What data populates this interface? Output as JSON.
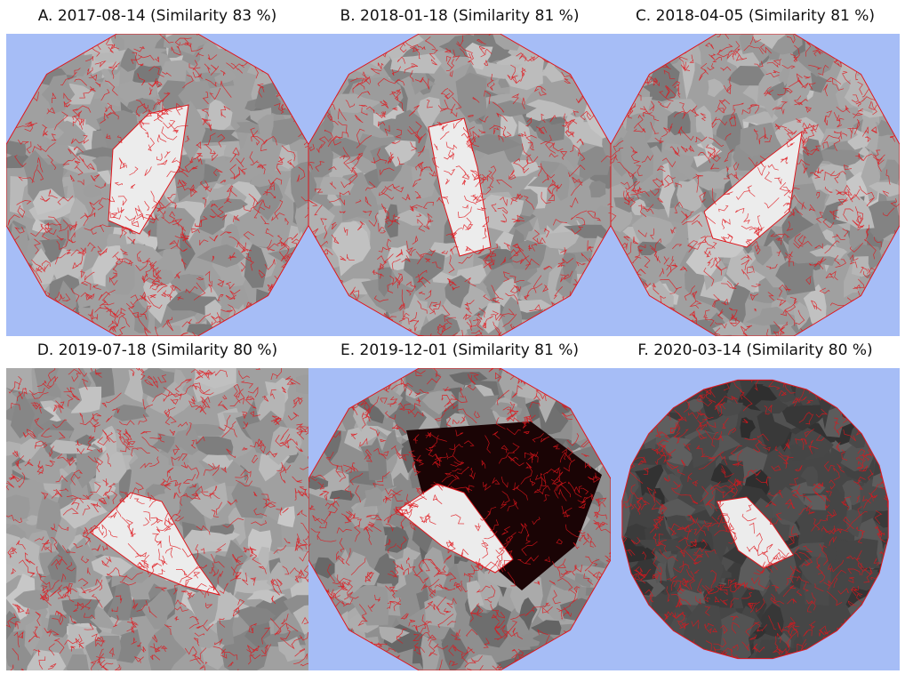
{
  "figure": {
    "background_color": "#a6bdf6",
    "boundary_color": "#e0151b",
    "panels": [
      {
        "caption": "A. 2017-08-14 (Similarity 83 %)",
        "shape": "polygon",
        "tone": "medium"
      },
      {
        "caption": "B. 2018-01-18 (Similarity 81 %)",
        "shape": "polygon",
        "tone": "medium"
      },
      {
        "caption": "C. 2018-04-05 (Similarity 81 %)",
        "shape": "polygon",
        "tone": "medium"
      },
      {
        "caption": "D. 2019-07-18 (Similarity 80 %)",
        "shape": "square",
        "tone": "medium"
      },
      {
        "caption": "E. 2019-12-01 (Similarity 81 %)",
        "shape": "polygon",
        "tone": "darkpocket"
      },
      {
        "caption": "F. 2020-03-14 (Similarity 80 %)",
        "shape": "polygon",
        "tone": "dark"
      }
    ]
  }
}
